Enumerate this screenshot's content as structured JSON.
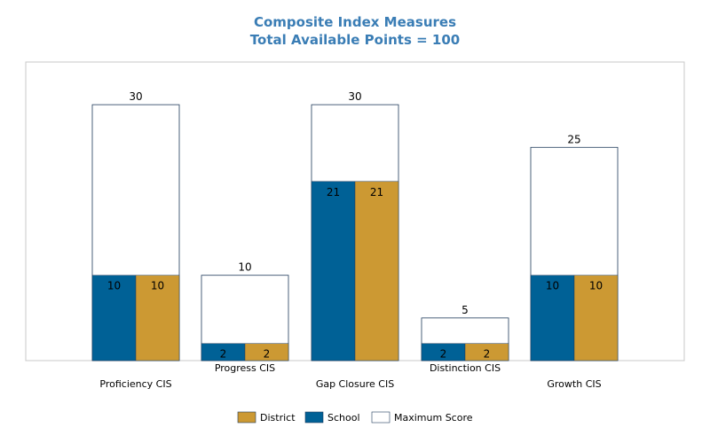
{
  "chart_data": {
    "type": "bar",
    "title": "Composite Index Measures",
    "subtitle": "Total Available Points = 100",
    "categories": [
      "Proficiency CIS",
      "Progress CIS",
      "Gap Closure CIS",
      "Distinction CIS",
      "Growth CIS"
    ],
    "series": [
      {
        "name": "School",
        "values": [
          10,
          2,
          21,
          2,
          10
        ],
        "color": "#006196"
      },
      {
        "name": "District",
        "values": [
          10,
          2,
          21,
          2,
          10
        ],
        "color": "#cc9933"
      },
      {
        "name": "Maximum Score",
        "values": [
          30,
          10,
          30,
          5,
          25
        ],
        "color": "#ffffff"
      }
    ],
    "legend": [
      "District",
      "School",
      "Maximum Score"
    ],
    "legend_position": "bottom",
    "ylim": [
      0,
      35
    ],
    "grid": false,
    "xlabel": "",
    "ylabel": ""
  }
}
